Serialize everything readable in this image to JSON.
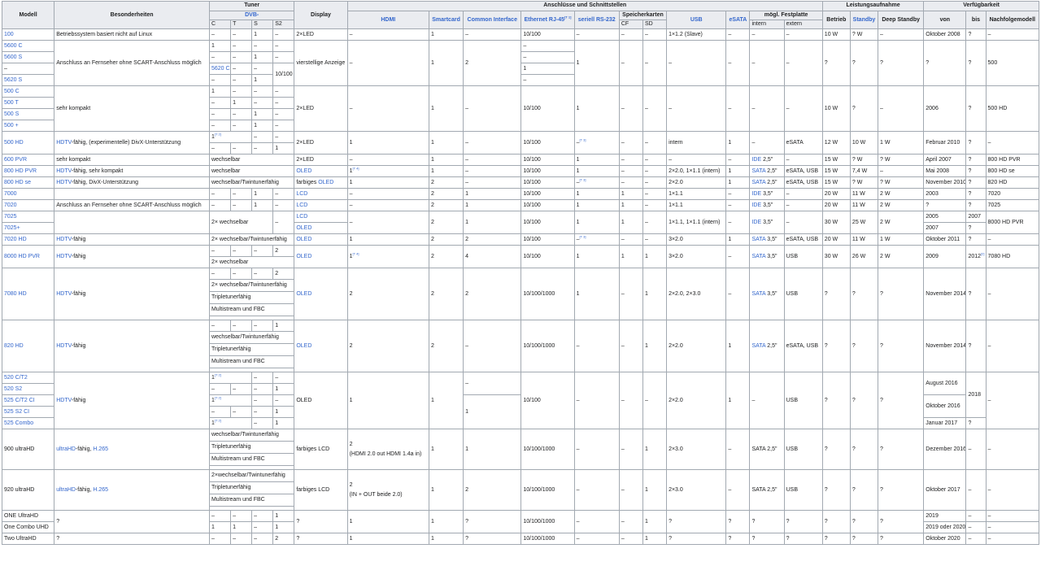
{
  "colors": {
    "link": "#3366cc",
    "header_bg": "#eaecf0",
    "border": "#a2a9b1",
    "text": "#202122"
  },
  "headers": {
    "modell": "Modell",
    "besonderheiten": "Besonderheiten",
    "tuner": "Tuner",
    "dvb": "DVB-",
    "dvb_c": "C",
    "dvb_t": "T",
    "dvb_s": "S",
    "dvb_s2": "S2",
    "display": "Display",
    "anschluesse": "Anschlüsse und Schnittstellen",
    "hdmi": "HDMI",
    "smartcard": "Smartcard",
    "common_interface": "Common Interface",
    "ethernet": "Ethernet RJ-45",
    "ethernet_ref": "[T 1]",
    "seriell": "seriell RS-232",
    "speicherkarten": "Speicherkarten",
    "cf": "CF",
    "sd": "SD",
    "usb": "USB",
    "esata": "eSATA",
    "festplatte": "mögl. Festplatte",
    "intern": "intern",
    "extern": "extern",
    "leistung": "Leistungsaufnahme",
    "betrieb": "Betrieb",
    "standby": "Standby",
    "deep_standby": "Deep Standby",
    "verfuegbarkeit": "Verfügbarkeit",
    "von": "von",
    "bis": "bis",
    "nachfolgemodell": "Nachfolgemodell"
  },
  "cells": {
    "d": "–",
    "q": "?",
    "one": "1",
    "two": "2",
    "four": "4",
    "e100": "10/100",
    "e1000": "10/100/1000",
    "ref_t2": "[T 2]",
    "ref_t3": "[T 3]",
    "ref_t4": "[T 4]",
    "ref_2": "[2]",
    "intern": "intern",
    "r100": {
      "model": "100",
      "bes": "Betriebssystem basiert nicht auf Linux",
      "display": "2×LED",
      "usb": "1×1.2 (Slave)",
      "betrieb": "10 W",
      "standby": "? W",
      "von": "Oktober 2008"
    },
    "g5600": {
      "m1": "5600 C",
      "m2": "5600 S",
      "m3": "5620 C",
      "m4": "5620 S",
      "bes": "Anschluss an Fernseher ohne SCART-Anschluss möglich",
      "display": "vierstellige Anzeige",
      "nachfolger": "500"
    },
    "g500": {
      "m1": "500 C",
      "m2": "500 T",
      "m3": "500 S",
      "m4": "500 +",
      "bes": "sehr kompakt",
      "display": "2×LED",
      "betrieb": "10 W",
      "von": "2006",
      "nachfolger": "500 HD"
    },
    "r500hd": {
      "model": "500 HD",
      "bes_link": "HDTV",
      "bes_rest": "-fähig, (experimentelle) DivX-Unterstützung",
      "display": "2×LED",
      "betrieb": "12 W",
      "standby": "10 W",
      "deep": "1 W",
      "von": "Februar 2010",
      "extern": "eSATA"
    },
    "r600": {
      "model": "600 PVR",
      "bes": "sehr kompakt",
      "tuner": "wechselbar",
      "display": "2×LED",
      "intern_link": "IDE",
      "intern_rest": " 2,5\"",
      "betrieb": "15 W",
      "standby": "? W",
      "deep": "? W",
      "von": "April 2007",
      "nachfolger": "800 HD PVR"
    },
    "r800pvr": {
      "model": "800 HD PVR",
      "bes_link": "HDTV",
      "bes_rest": "-fähig, sehr kompakt",
      "tuner": "wechselbar",
      "display": "OLED",
      "usb": "2×2.0, 1×1.1 (intern)",
      "intern_link": "SATA",
      "intern_rest": " 2,5\"",
      "extern": "eSATA, USB",
      "betrieb": "15 W",
      "standby": "7,4 W",
      "von": "Mai 2008",
      "nachfolger": "800 HD se"
    },
    "r800se": {
      "model": "800 HD se",
      "bes_link": "HDTV",
      "bes_rest": "-fähig, DivX-Unterstützung",
      "tuner": "wechselbar/Twintunerfähig",
      "display_pre": "farbiges ",
      "display_link": "OLED",
      "usb": "2×2.0",
      "intern_link": "SATA",
      "intern_rest": " 2,5\"",
      "extern": "eSATA, USB",
      "betrieb": "15 W",
      "standby": "? W",
      "deep": "? W",
      "von": "November 2010",
      "nachfolger": "820 HD"
    },
    "r7000": {
      "model": "7000",
      "display": "LCD",
      "usb": "1×1.1",
      "intern_link": "IDE",
      "intern_rest": " 3,5\"",
      "betrieb": "20 W",
      "standby": "11 W",
      "deep": "2 W",
      "von": "2003",
      "nachfolger": "7020"
    },
    "r7020": {
      "model": "7020",
      "bes": "Anschluss an Fernseher ohne SCART-Anschluss möglich",
      "display": "LCD",
      "usb": "1×1.1",
      "intern_link": "IDE",
      "intern_rest": " 3,5\"",
      "betrieb": "20 W",
      "standby": "11 W",
      "deep": "2 W",
      "nachfolger": "7025"
    },
    "g7025": {
      "m1": "7025",
      "m2": "7025+",
      "tuner": "2× wechselbar",
      "display1": "LCD",
      "display2": "OLED",
      "usb": "1×1.1, 1×1.1 (intern)",
      "intern_link": "IDE",
      "intern_rest": " 3,5\"",
      "betrieb": "30 W",
      "standby": "25 W",
      "deep": "2 W",
      "von1": "2005",
      "bis1": "2007",
      "von2": "2007",
      "nachfolger": "8000 HD PVR"
    },
    "r7020hd": {
      "model": "7020 HD",
      "bes_link": "HDTV",
      "bes_rest": "-fähig",
      "tuner": "2× wechselbar/Twintunerfähig",
      "display": "OLED",
      "usb": "3×2.0",
      "intern_link": "SATA",
      "intern_rest": " 3,5\"",
      "extern": "eSATA, USB",
      "betrieb": "20 W",
      "standby": "11 W",
      "deep": "1 W",
      "von": "Oktober 2011"
    },
    "g8000": {
      "model": "8000 HD PVR",
      "bes_link": "HDTV",
      "bes_rest": "-fähig",
      "tuner": "2× wechselbar",
      "display": "OLED",
      "usb": "3×2.0",
      "intern_link": "SATA",
      "intern_rest": " 3,5\"",
      "extern": "USB",
      "betrieb": "30 W",
      "standby": "26 W",
      "deep": "2 W",
      "von": "2009",
      "bis": "2012",
      "nachfolger": "7080 HD"
    },
    "g7080": {
      "model": "7080 HD",
      "bes_link": "HDTV",
      "bes_rest": "-fähig",
      "t1": "2× wechselbar/Twintunerfähig",
      "t2": "Tripletunerfähig",
      "t3": "Multistream und FBC",
      "display": "OLED",
      "usb": "2×2.0, 2×3.0",
      "intern_link": "SATA",
      "intern_rest": " 3,5\"",
      "extern": "USB",
      "von": "November 2014"
    },
    "g820": {
      "model": "820 HD",
      "bes_link": "HDTV",
      "bes_rest": "-fähig",
      "t1": "wechselbar/Twintunerfähig",
      "t2": "Tripletunerfähig",
      "t3": "Multistream und FBC",
      "display": "OLED",
      "usb": "2×2.0",
      "intern_link": "SATA",
      "intern_rest": " 2,5\"",
      "extern": "eSATA, USB",
      "von": "November 2014"
    },
    "g520": {
      "m1": "520 C/T2",
      "m2": "520 S2",
      "m3": "525 C/T2 CI",
      "m4": "525 S2 CI",
      "m5": "525 Combo",
      "bes_link": "HDTV",
      "bes_rest": "-fähig",
      "display": "OLED",
      "usb": "2×2.0",
      "extern": "USB",
      "von1": "August 2016",
      "von2": "Oktober 2016",
      "von3": "Januar 2017",
      "bis": "2018"
    },
    "g900": {
      "model": "900 ultraHD",
      "bes_link": "ultraHD",
      "bes_mid": "-fähig, ",
      "bes_link2": "H.265",
      "t1": "wechselbar/Twintunerfähig",
      "t2": "Tripletunerfähig",
      "t3": "Multistream und FBC",
      "display": "farbiges LCD",
      "hdmi1": "2",
      "hdmi2": "(HDMI 2.0 out HDMI 1.4a in)",
      "usb": "2×3.0",
      "intern": "SATA 2,5\"",
      "extern": "USB",
      "von": "Dezember 2016"
    },
    "g920": {
      "model": "920 ultraHD",
      "bes_link": "ultraHD",
      "bes_mid": "-fähig, ",
      "bes_link2": "H.265",
      "t1": "2×wechselbar/Twintunerfähig",
      "t2": "Tripletunerfähig",
      "t3": "Multistream und FBC",
      "display": "farbiges LCD",
      "hdmi1": "2",
      "hdmi2": "(IN + OUT beide 2.0)",
      "usb": "2×3.0",
      "intern": "SATA 2,5\"",
      "extern": "USB",
      "von": "Oktober 2017"
    },
    "gone": {
      "m1": "ONE UltraHD",
      "m2": "One Combo UHD",
      "von1": "2019",
      "von2": "2019 oder 2020"
    },
    "rtwo": {
      "model": "Two UltraHD",
      "von": "Oktober 2020"
    }
  }
}
